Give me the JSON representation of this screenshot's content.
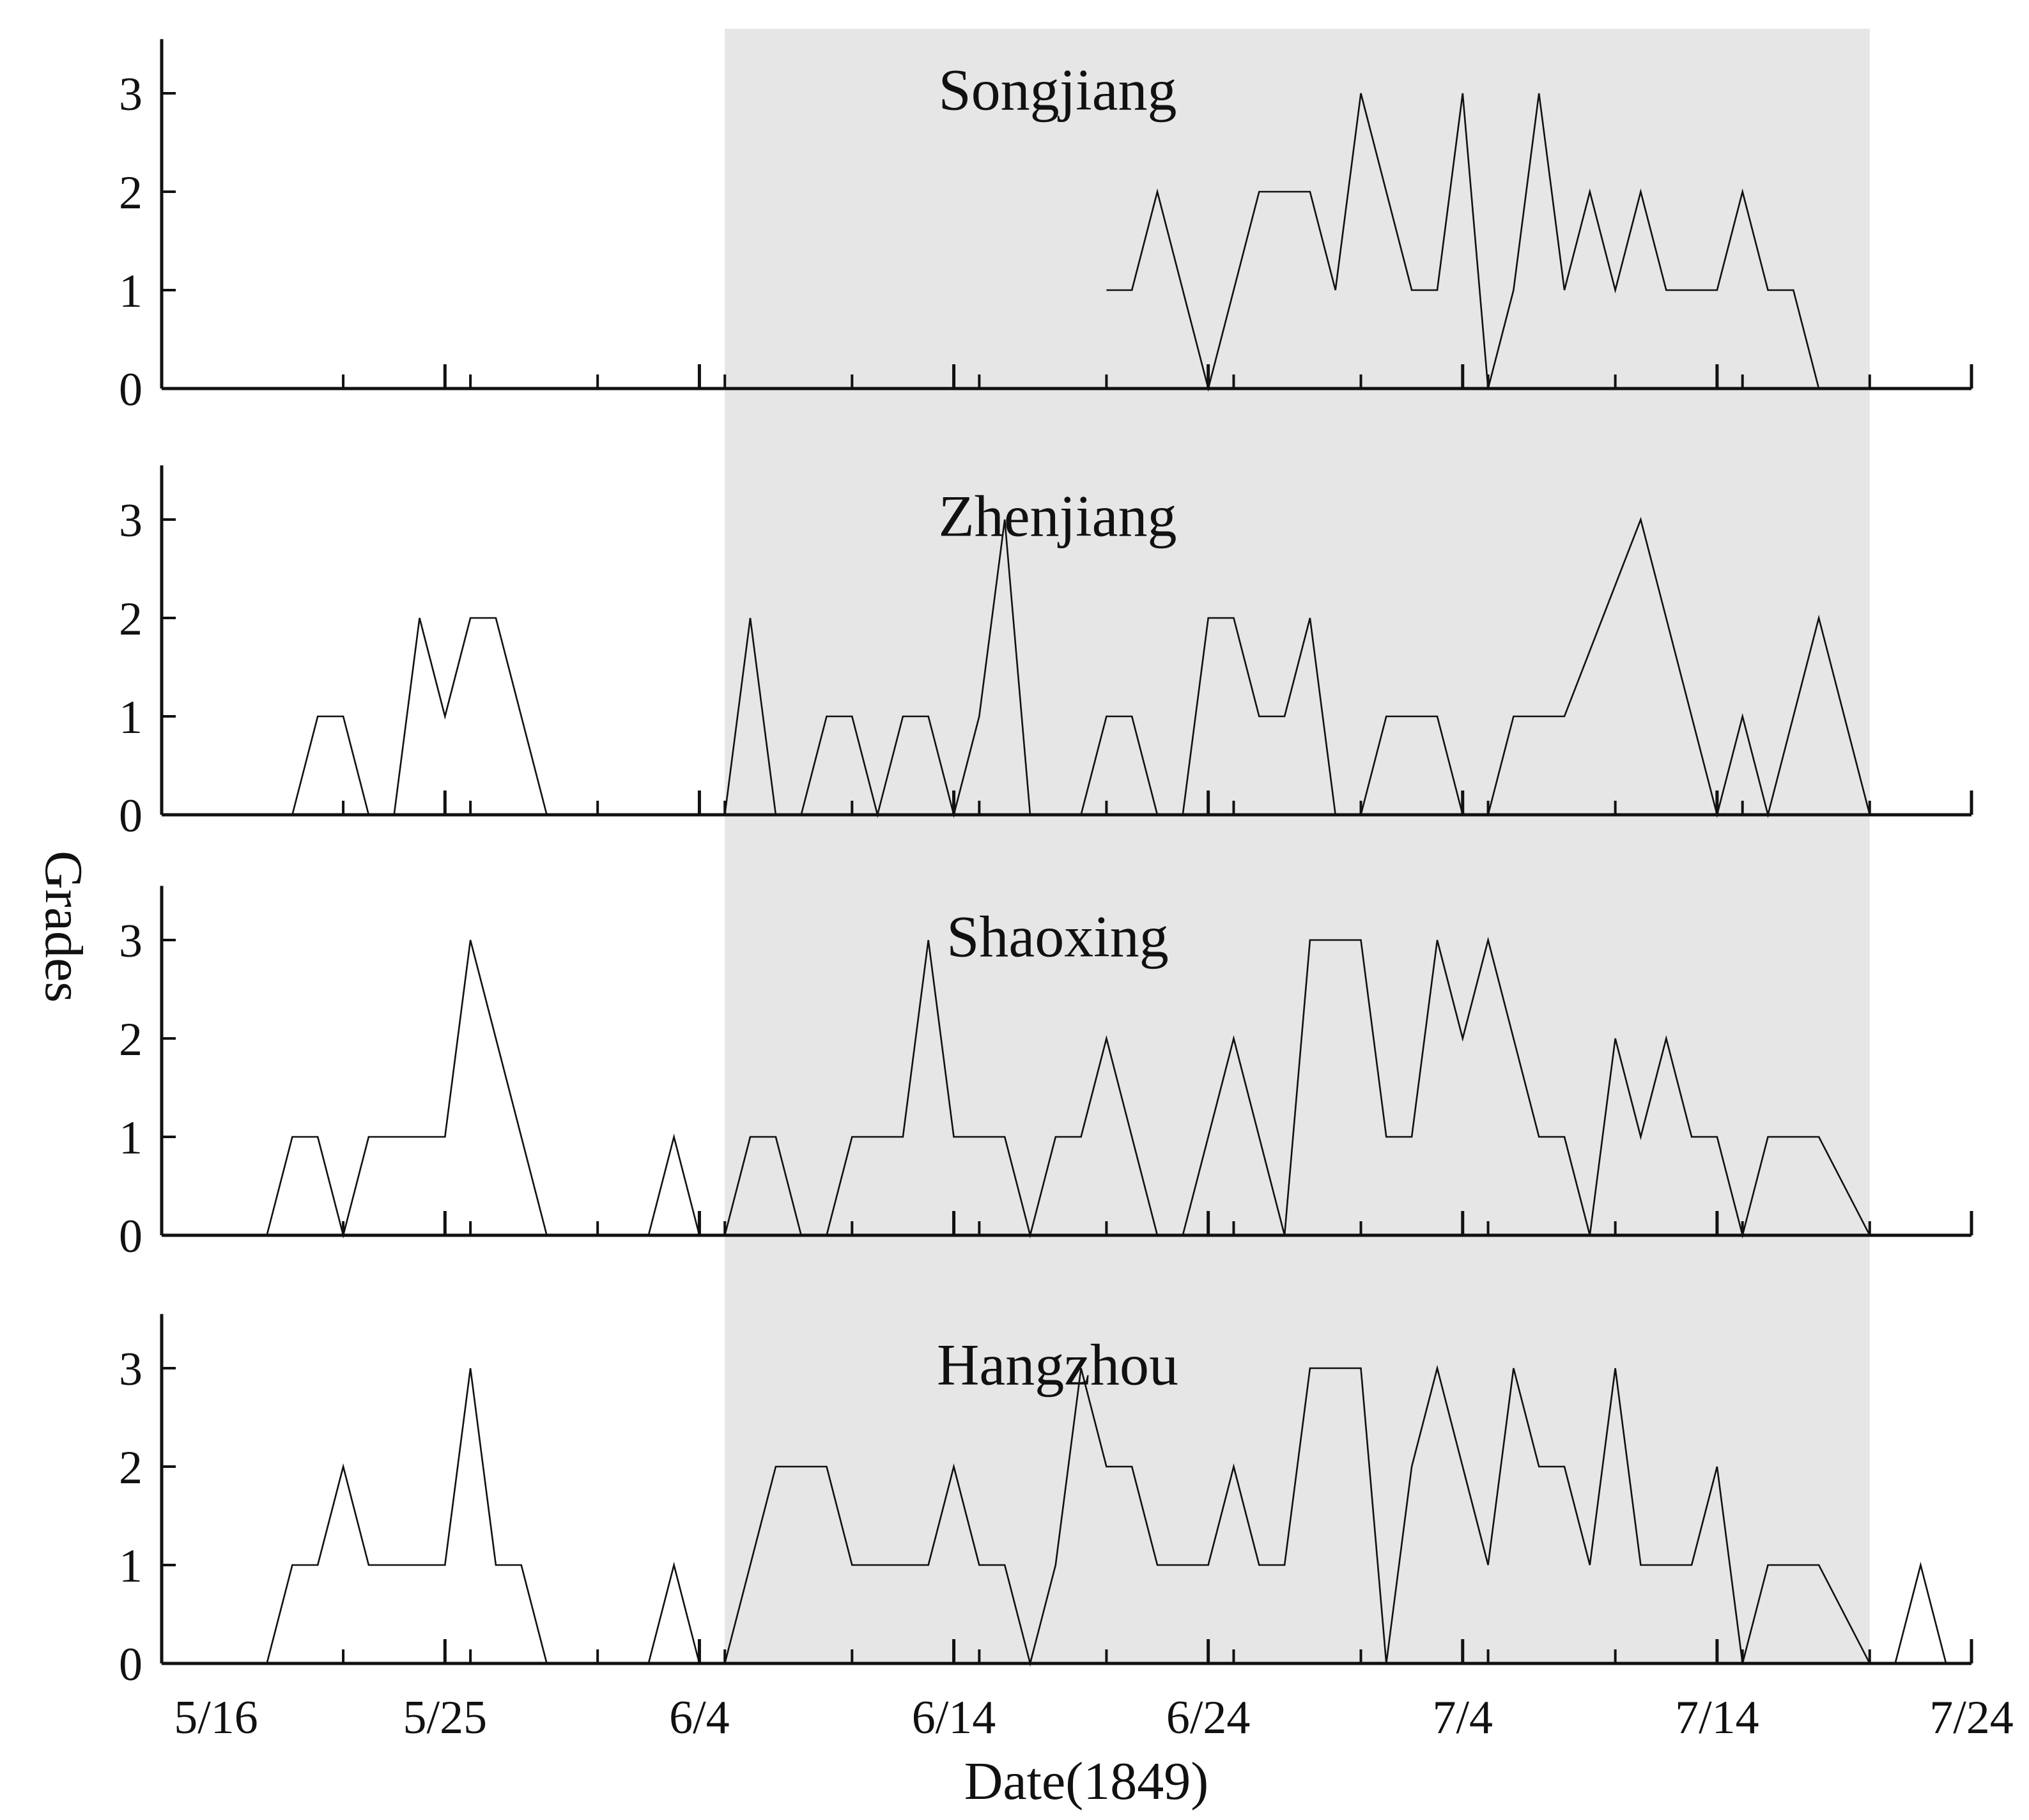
{
  "chart_data": {
    "type": "line",
    "x_axis": {
      "label": "Date(1849)",
      "range": [
        "1849-05-16",
        "1849-07-24"
      ],
      "tick_dates": [
        "1849-05-16",
        "1849-05-25",
        "1849-06-04",
        "1849-06-14",
        "1849-06-24",
        "1849-07-04",
        "1849-07-14",
        "1849-07-24"
      ],
      "tick_labels": [
        "5/16",
        "5/25",
        "6/4",
        "6/14",
        "6/24",
        "7/4",
        "7/14",
        "7/24"
      ]
    },
    "y_axis": {
      "label": "Grades",
      "range": [
        0,
        3.5
      ],
      "ticks": [
        0,
        1,
        2,
        3
      ]
    },
    "highlight": {
      "start": "1849-06-05",
      "end": "1849-07-20",
      "color": "#e6e6e6"
    },
    "grid": false,
    "line_color": "#111111",
    "panels": [
      {
        "title": "Songjiang",
        "segments": [
          [
            [
              "1849-06-20",
              1
            ],
            [
              "1849-06-21",
              1
            ],
            [
              "1849-06-22",
              2
            ],
            [
              "1849-06-24",
              0
            ],
            [
              "1849-06-26",
              2
            ],
            [
              "1849-06-28",
              2
            ],
            [
              "1849-06-29",
              1
            ],
            [
              "1849-06-30",
              3
            ],
            [
              "1849-07-02",
              1
            ],
            [
              "1849-07-03",
              1
            ],
            [
              "1849-07-04",
              3
            ],
            [
              "1849-07-05",
              0
            ],
            [
              "1849-07-06",
              1
            ],
            [
              "1849-07-07",
              3
            ],
            [
              "1849-07-08",
              1
            ],
            [
              "1849-07-09",
              2
            ],
            [
              "1849-07-10",
              1
            ],
            [
              "1849-07-11",
              2
            ],
            [
              "1849-07-12",
              1
            ],
            [
              "1849-07-14",
              1
            ],
            [
              "1849-07-15",
              2
            ],
            [
              "1849-07-16",
              1
            ],
            [
              "1849-07-17",
              1
            ],
            [
              "1849-07-18",
              0
            ]
          ]
        ]
      },
      {
        "title": "Zhenjiang",
        "segments": [
          [
            [
              "1849-05-19",
              0
            ],
            [
              "1849-05-20",
              1
            ],
            [
              "1849-05-21",
              1
            ],
            [
              "1849-05-22",
              0
            ]
          ],
          [
            [
              "1849-05-23",
              0
            ],
            [
              "1849-05-24",
              2
            ],
            [
              "1849-05-25",
              1
            ],
            [
              "1849-05-26",
              2
            ],
            [
              "1849-05-27",
              2
            ],
            [
              "1849-05-29",
              0
            ]
          ],
          [
            [
              "1849-06-05",
              0
            ],
            [
              "1849-06-06",
              2
            ],
            [
              "1849-06-07",
              0
            ]
          ],
          [
            [
              "1849-06-08",
              0
            ],
            [
              "1849-06-09",
              1
            ],
            [
              "1849-06-10",
              1
            ],
            [
              "1849-06-11",
              0
            ],
            [
              "1849-06-12",
              1
            ],
            [
              "1849-06-13",
              1
            ],
            [
              "1849-06-14",
              0
            ],
            [
              "1849-06-15",
              1
            ],
            [
              "1849-06-16",
              3
            ],
            [
              "1849-06-17",
              0
            ]
          ],
          [
            [
              "1849-06-19",
              0
            ],
            [
              "1849-06-20",
              1
            ],
            [
              "1849-06-21",
              1
            ],
            [
              "1849-06-22",
              0
            ]
          ],
          [
            [
              "1849-06-23",
              0
            ],
            [
              "1849-06-24",
              2
            ],
            [
              "1849-06-25",
              2
            ],
            [
              "1849-06-26",
              1
            ],
            [
              "1849-06-27",
              1
            ],
            [
              "1849-06-28",
              2
            ],
            [
              "1849-06-29",
              0
            ]
          ],
          [
            [
              "1849-06-30",
              0
            ],
            [
              "1849-07-01",
              1
            ],
            [
              "1849-07-02",
              1
            ],
            [
              "1849-07-03",
              1
            ],
            [
              "1849-07-04",
              0
            ]
          ],
          [
            [
              "1849-07-05",
              0
            ],
            [
              "1849-07-06",
              1
            ],
            [
              "1849-07-07",
              1
            ],
            [
              "1849-07-08",
              1
            ],
            [
              "1849-07-11",
              3
            ],
            [
              "1849-07-14",
              0
            ],
            [
              "1849-07-15",
              1
            ],
            [
              "1849-07-16",
              0
            ],
            [
              "1849-07-18",
              2
            ],
            [
              "1849-07-20",
              0
            ]
          ]
        ]
      },
      {
        "title": "Shaoxing",
        "segments": [
          [
            [
              "1849-05-18",
              0
            ],
            [
              "1849-05-19",
              1
            ],
            [
              "1849-05-20",
              1
            ],
            [
              "1849-05-21",
              0
            ],
            [
              "1849-05-22",
              1
            ],
            [
              "1849-05-24",
              1
            ],
            [
              "1849-05-25",
              1
            ],
            [
              "1849-05-26",
              3
            ],
            [
              "1849-05-29",
              0
            ]
          ],
          [
            [
              "1849-06-02",
              0
            ],
            [
              "1849-06-03",
              1
            ],
            [
              "1849-06-04",
              0
            ]
          ],
          [
            [
              "1849-06-05",
              0
            ],
            [
              "1849-06-06",
              1
            ],
            [
              "1849-06-07",
              1
            ],
            [
              "1849-06-08",
              0
            ]
          ],
          [
            [
              "1849-06-09",
              0
            ],
            [
              "1849-06-10",
              1
            ],
            [
              "1849-06-12",
              1
            ],
            [
              "1849-06-13",
              3
            ],
            [
              "1849-06-14",
              1
            ],
            [
              "1849-06-16",
              1
            ],
            [
              "1849-06-17",
              0
            ],
            [
              "1849-06-18",
              1
            ],
            [
              "1849-06-19",
              1
            ],
            [
              "1849-06-20",
              2
            ],
            [
              "1849-06-22",
              0
            ]
          ],
          [
            [
              "1849-06-23",
              0
            ],
            [
              "1849-06-25",
              2
            ],
            [
              "1849-06-27",
              0
            ],
            [
              "1849-06-28",
              3
            ],
            [
              "1849-06-30",
              3
            ],
            [
              "1849-07-01",
              1
            ],
            [
              "1849-07-02",
              1
            ],
            [
              "1849-07-03",
              3
            ],
            [
              "1849-07-04",
              2
            ],
            [
              "1849-07-05",
              3
            ],
            [
              "1849-07-07",
              1
            ],
            [
              "1849-07-08",
              1
            ],
            [
              "1849-07-09",
              0
            ],
            [
              "1849-07-10",
              2
            ],
            [
              "1849-07-11",
              1
            ],
            [
              "1849-07-12",
              2
            ],
            [
              "1849-07-13",
              1
            ],
            [
              "1849-07-14",
              1
            ],
            [
              "1849-07-15",
              0
            ],
            [
              "1849-07-16",
              1
            ],
            [
              "1849-07-18",
              1
            ],
            [
              "1849-07-20",
              0
            ]
          ]
        ]
      },
      {
        "title": "Hangzhou",
        "segments": [
          [
            [
              "1849-05-18",
              0
            ],
            [
              "1849-05-19",
              1
            ],
            [
              "1849-05-20",
              1
            ],
            [
              "1849-05-21",
              2
            ],
            [
              "1849-05-22",
              1
            ],
            [
              "1849-05-24",
              1
            ],
            [
              "1849-05-25",
              1
            ],
            [
              "1849-05-26",
              3
            ],
            [
              "1849-05-27",
              1
            ],
            [
              "1849-05-28",
              1
            ],
            [
              "1849-05-29",
              0
            ]
          ],
          [
            [
              "1849-06-02",
              0
            ],
            [
              "1849-06-03",
              1
            ],
            [
              "1849-06-04",
              0
            ]
          ],
          [
            [
              "1849-06-05",
              0
            ],
            [
              "1849-06-07",
              2
            ],
            [
              "1849-06-09",
              2
            ],
            [
              "1849-06-10",
              1
            ],
            [
              "1849-06-13",
              1
            ],
            [
              "1849-06-14",
              2
            ],
            [
              "1849-06-15",
              1
            ],
            [
              "1849-06-16",
              1
            ],
            [
              "1849-06-17",
              0
            ],
            [
              "1849-06-18",
              1
            ],
            [
              "1849-06-19",
              3
            ],
            [
              "1849-06-20",
              2
            ],
            [
              "1849-06-21",
              2
            ],
            [
              "1849-06-22",
              1
            ],
            [
              "1849-06-24",
              1
            ],
            [
              "1849-06-25",
              2
            ],
            [
              "1849-06-26",
              1
            ],
            [
              "1849-06-27",
              1
            ],
            [
              "1849-06-28",
              3
            ],
            [
              "1849-06-30",
              3
            ],
            [
              "1849-07-01",
              0
            ],
            [
              "1849-07-02",
              2
            ],
            [
              "1849-07-03",
              3
            ],
            [
              "1849-07-05",
              1
            ],
            [
              "1849-07-06",
              3
            ],
            [
              "1849-07-07",
              2
            ],
            [
              "1849-07-08",
              2
            ],
            [
              "1849-07-09",
              1
            ],
            [
              "1849-07-10",
              3
            ],
            [
              "1849-07-11",
              1
            ],
            [
              "1849-07-13",
              1
            ],
            [
              "1849-07-14",
              2
            ],
            [
              "1849-07-15",
              0
            ],
            [
              "1849-07-16",
              1
            ],
            [
              "1849-07-18",
              1
            ],
            [
              "1849-07-20",
              0
            ]
          ],
          [
            [
              "1849-07-21",
              0
            ],
            [
              "1849-07-22",
              1
            ],
            [
              "1849-07-23",
              0
            ]
          ]
        ]
      }
    ]
  }
}
